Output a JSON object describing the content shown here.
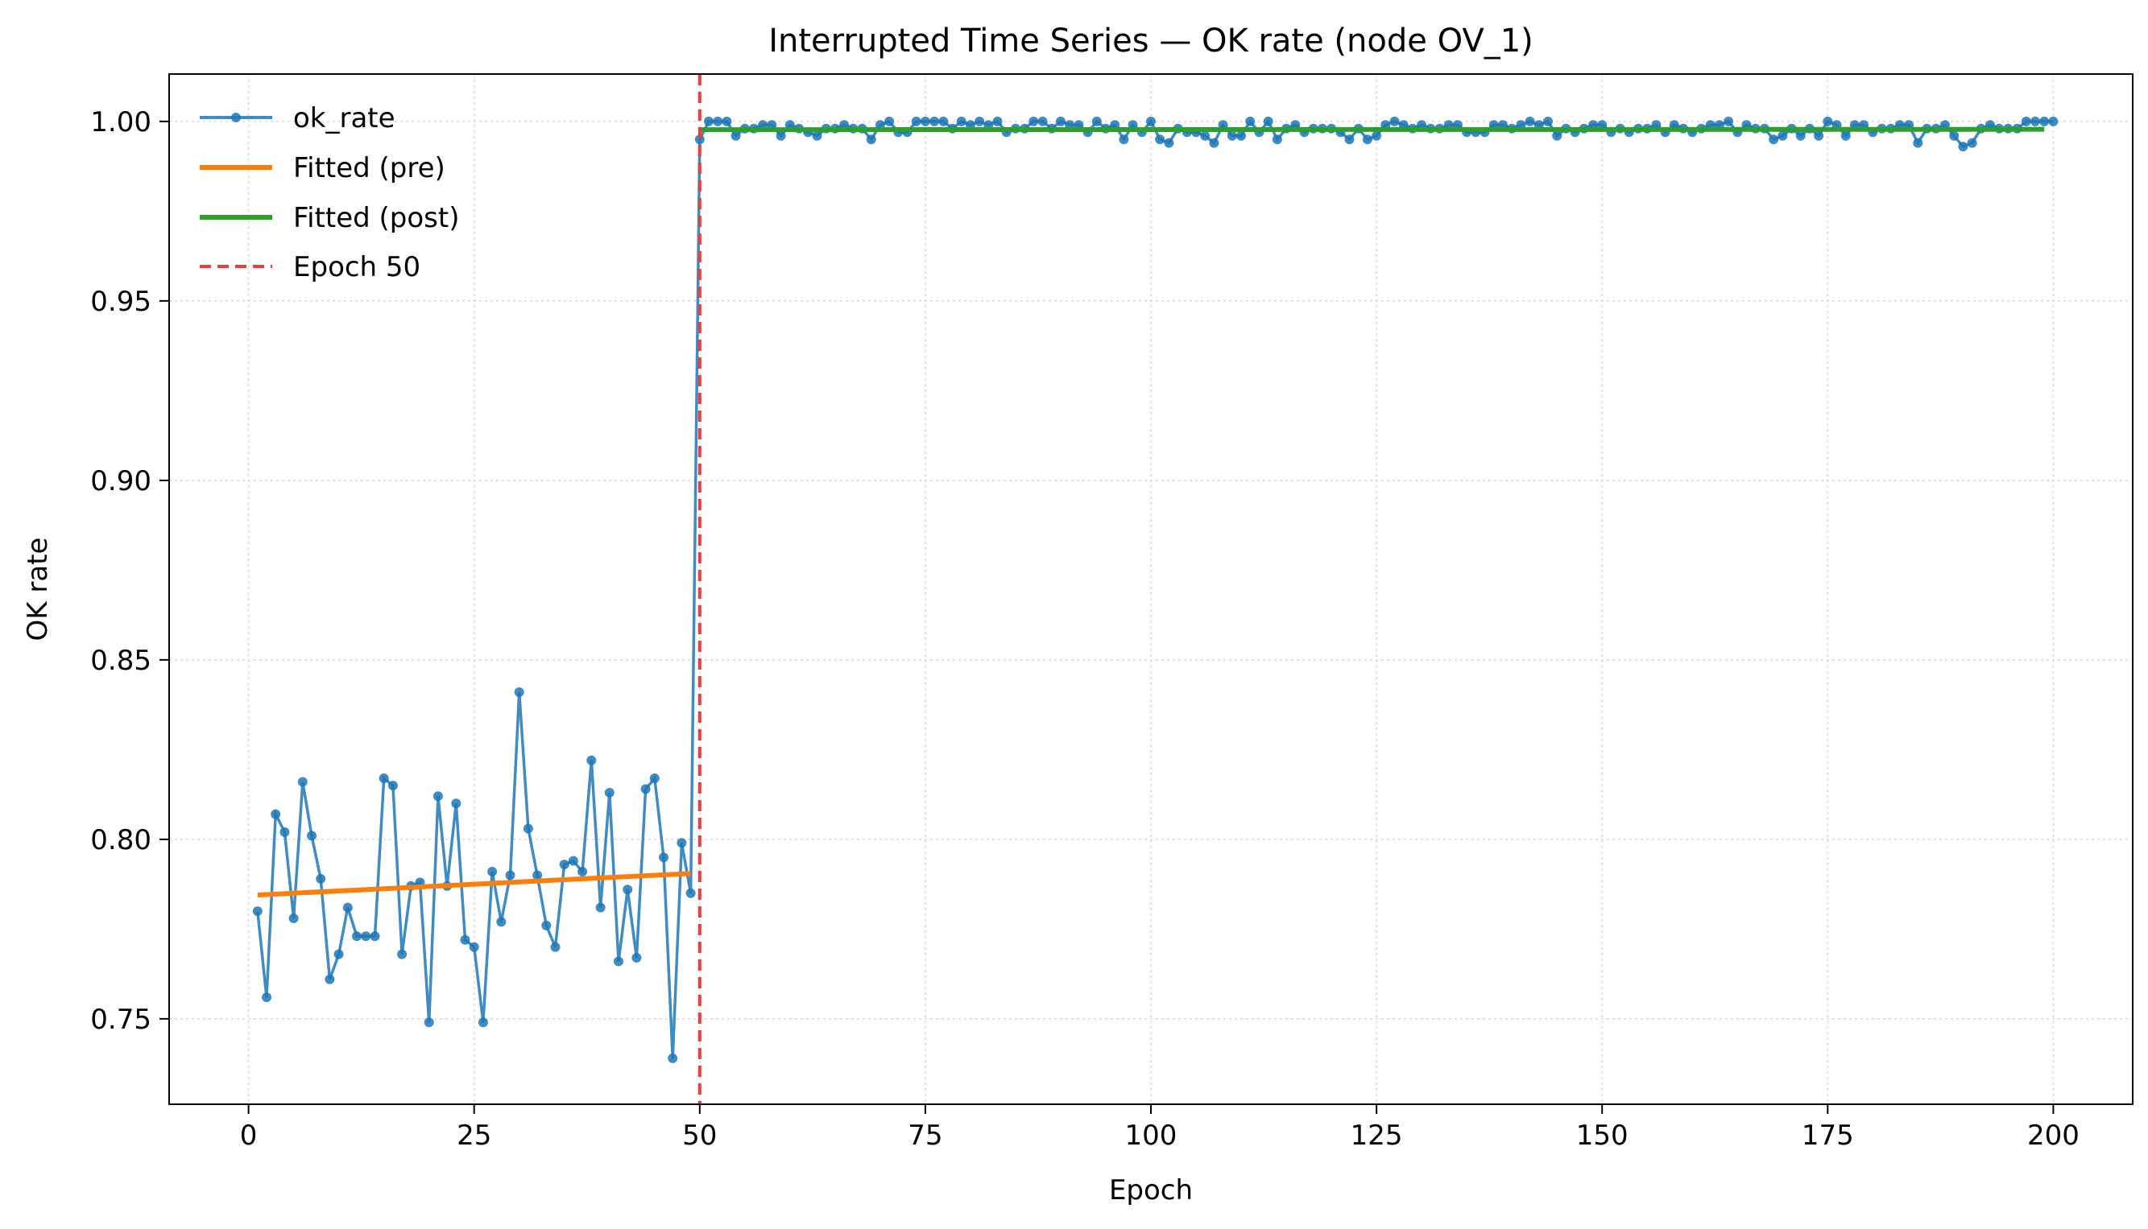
{
  "chart_data": {
    "type": "line",
    "title": "Interrupted Time Series — OK rate (node OV_1)",
    "xlabel": "Epoch",
    "ylabel": "OK rate",
    "xlim": [
      -8.8,
      208.8
    ],
    "ylim": [
      0.7262,
      1.0132
    ],
    "xticks": [
      0,
      25,
      50,
      75,
      100,
      125,
      150,
      175,
      200
    ],
    "yticks": [
      0.75,
      0.8,
      0.85,
      0.9,
      0.95,
      1.0
    ],
    "ytick_labels": [
      "0.75",
      "0.80",
      "0.85",
      "0.90",
      "0.95",
      "1.00"
    ],
    "grid": true,
    "legend_position": "top-left",
    "series": [
      {
        "name": "ok_rate",
        "color": "#1f77b4",
        "style": "line-with-markers",
        "x_start": 1,
        "values": [
          0.78,
          0.756,
          0.807,
          0.802,
          0.778,
          0.816,
          0.801,
          0.789,
          0.761,
          0.768,
          0.781,
          0.773,
          0.773,
          0.773,
          0.817,
          0.815,
          0.768,
          0.787,
          0.788,
          0.749,
          0.812,
          0.787,
          0.81,
          0.772,
          0.77,
          0.749,
          0.791,
          0.777,
          0.79,
          0.841,
          0.803,
          0.79,
          0.776,
          0.77,
          0.793,
          0.794,
          0.791,
          0.822,
          0.781,
          0.813,
          0.766,
          0.786,
          0.767,
          0.814,
          0.817,
          0.795,
          0.739,
          0.799,
          0.785,
          0.995,
          1.0,
          1.0,
          1.0,
          0.996,
          0.998,
          0.998,
          0.999,
          0.999,
          0.996,
          0.999,
          0.998,
          0.997,
          0.996,
          0.998,
          0.998,
          0.999,
          0.998,
          0.998,
          0.995,
          0.999,
          1.0,
          0.997,
          0.997,
          1.0,
          1.0,
          1.0,
          1.0,
          0.998,
          1.0,
          0.999,
          1.0,
          0.999,
          1.0,
          0.997,
          0.998,
          0.998,
          1.0,
          1.0,
          0.998,
          1.0,
          0.999,
          0.999,
          0.997,
          1.0,
          0.998,
          0.999,
          0.995,
          0.999,
          0.997,
          1.0,
          0.995,
          0.994,
          0.998,
          0.997,
          0.997,
          0.996,
          0.994,
          0.999,
          0.996,
          0.996,
          1.0,
          0.997,
          1.0,
          0.995,
          0.998,
          0.999,
          0.997,
          0.998,
          0.998,
          0.998,
          0.997,
          0.995,
          0.998,
          0.995,
          0.996,
          0.999,
          1.0,
          0.999,
          0.998,
          0.999,
          0.998,
          0.998,
          0.999,
          0.999,
          0.997,
          0.997,
          0.997,
          0.999,
          0.999,
          0.998,
          0.999,
          1.0,
          0.999,
          1.0,
          0.996,
          0.998,
          0.997,
          0.998,
          0.999,
          0.999,
          0.997,
          0.998,
          0.997,
          0.998,
          0.998,
          0.999,
          0.997,
          0.999,
          0.998,
          0.997,
          0.998,
          0.999,
          0.999,
          1.0,
          0.997,
          0.999,
          0.998,
          0.998,
          0.995,
          0.996,
          0.998,
          0.996,
          0.998,
          0.996,
          1.0,
          0.999,
          0.996,
          0.999,
          0.999,
          0.997,
          0.998,
          0.998,
          0.999,
          0.999,
          0.994,
          0.998,
          0.998,
          0.999,
          0.996,
          0.993,
          0.994,
          0.998,
          0.999,
          0.998,
          0.998,
          0.998,
          1.0,
          1.0,
          1.0,
          1.0
        ]
      },
      {
        "name": "Fitted (pre)",
        "color": "#ff7f0e",
        "style": "line",
        "x": [
          1,
          49
        ],
        "y": [
          0.7845,
          0.7905
        ]
      },
      {
        "name": "Fitted (post)",
        "color": "#2ca02c",
        "style": "line",
        "x": [
          50,
          199
        ],
        "y": [
          0.9977,
          0.9978
        ]
      },
      {
        "name": "Epoch 50",
        "color": "#e84040",
        "style": "dashed-vertical-line",
        "x": 50
      }
    ]
  }
}
